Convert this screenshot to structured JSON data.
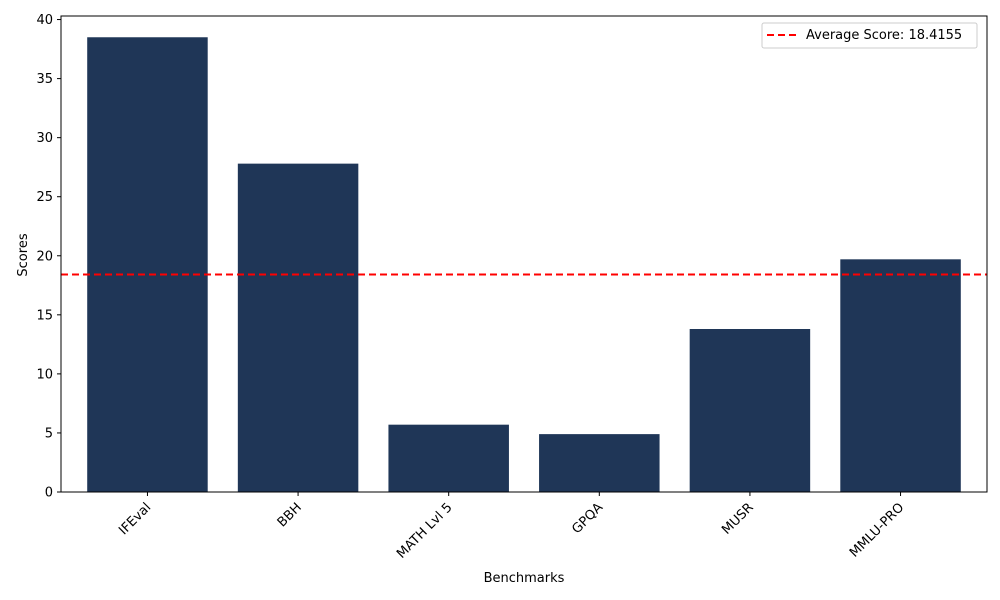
{
  "chart_data": {
    "type": "bar",
    "title": "",
    "xlabel": "Benchmarks",
    "ylabel": "Scores",
    "categories": [
      "IFEval",
      "BBH",
      "MATH Lvl 5",
      "GPQA",
      "MUSR",
      "MMLU-PRO"
    ],
    "values": [
      38.5,
      27.8,
      5.7,
      4.9,
      13.8,
      19.7
    ],
    "ylim": [
      0,
      40.3
    ],
    "yticks": [
      0,
      5,
      10,
      15,
      20,
      25,
      30,
      35,
      40
    ],
    "bar_color": "#1f3657",
    "grid": false,
    "reference_line": {
      "value": 18.4155,
      "label": "Average Score: 18.4155",
      "color": "#ff0000",
      "style": "dashed"
    },
    "legend": {
      "placement": "top-right"
    }
  }
}
